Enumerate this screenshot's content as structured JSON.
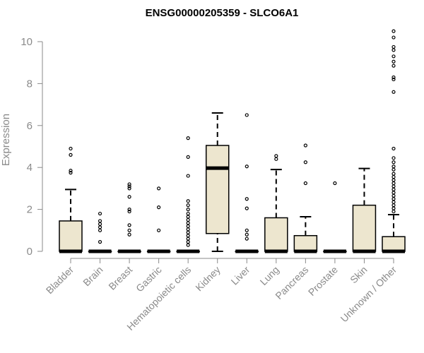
{
  "chart_data": {
    "type": "boxplot",
    "title": "ENSG00000205359 - SLCO6A1",
    "ylabel": "Expression",
    "xlabel": "",
    "ylim": [
      0,
      10.8
    ],
    "yticks": [
      0,
      2,
      4,
      6,
      8,
      10
    ],
    "grid": false,
    "legend": "none",
    "colors": {
      "box_fill": "#ede6cf",
      "stroke": "#000000",
      "axis": "#8a8a8a"
    },
    "categories": [
      "Bladder",
      "Brain",
      "Breast",
      "Gastric",
      "Hematopoietic cells",
      "Kidney",
      "Liver",
      "Lung",
      "Pancreas",
      "Prostate",
      "Skin",
      "Unknown / Other"
    ],
    "boxes": [
      {
        "category": "Bladder",
        "min": 0,
        "q1": 0,
        "median": 0,
        "q3": 1.45,
        "max": 2.95,
        "outliers": [
          3.75,
          3.85,
          4.6,
          4.9
        ]
      },
      {
        "category": "Brain",
        "min": 0,
        "q1": 0,
        "median": 0,
        "q3": 0,
        "max": 0,
        "outliers": [
          0.45,
          1.0,
          1.15,
          1.3,
          1.45,
          1.8
        ]
      },
      {
        "category": "Breast",
        "min": 0,
        "q1": 0,
        "median": 0,
        "q3": 0,
        "max": 0,
        "outliers": [
          0.8,
          1.0,
          1.25,
          1.9,
          2.0,
          2.6,
          3.0,
          3.1,
          3.2
        ]
      },
      {
        "category": "Gastric",
        "min": 0,
        "q1": 0,
        "median": 0,
        "q3": 0,
        "max": 0,
        "outliers": [
          1.0,
          2.1,
          3.0
        ]
      },
      {
        "category": "Hematopoietic cells",
        "min": 0,
        "q1": 0,
        "median": 0,
        "q3": 0,
        "max": 0,
        "outliers": [
          0.3,
          0.45,
          0.6,
          0.75,
          0.9,
          1.05,
          1.2,
          1.35,
          1.5,
          1.65,
          1.8,
          2.0,
          2.2,
          2.4,
          3.6,
          4.5,
          5.4
        ]
      },
      {
        "category": "Kidney",
        "min": 0,
        "q1": 0.85,
        "median": 3.97,
        "q3": 5.05,
        "max": 6.6,
        "outliers": []
      },
      {
        "category": "Liver",
        "min": 0,
        "q1": 0,
        "median": 0,
        "q3": 0,
        "max": 0,
        "outliers": [
          0.6,
          0.8,
          1.0,
          2.05,
          2.5,
          4.05,
          6.5
        ]
      },
      {
        "category": "Lung",
        "min": 0,
        "q1": 0,
        "median": 0,
        "q3": 1.6,
        "max": 3.9,
        "outliers": [
          4.4,
          4.55
        ]
      },
      {
        "category": "Pancreas",
        "min": 0,
        "q1": 0,
        "median": 0,
        "q3": 0.75,
        "max": 1.65,
        "outliers": [
          3.25,
          4.25,
          5.05
        ]
      },
      {
        "category": "Prostate",
        "min": 0,
        "q1": 0,
        "median": 0,
        "q3": 0,
        "max": 0,
        "outliers": [
          3.25
        ]
      },
      {
        "category": "Skin",
        "min": 0,
        "q1": 0,
        "median": 0,
        "q3": 2.2,
        "max": 3.95,
        "outliers": []
      },
      {
        "category": "Unknown / Other",
        "min": 0,
        "q1": 0,
        "median": 0,
        "q3": 0.7,
        "max": 1.75,
        "outliers": [
          1.9,
          2.05,
          2.2,
          2.35,
          2.5,
          2.65,
          2.8,
          2.95,
          3.1,
          3.25,
          3.4,
          3.55,
          3.7,
          3.9,
          4.05,
          4.25,
          4.45,
          4.9,
          7.6,
          8.2,
          8.3,
          8.85,
          9.05,
          9.3,
          9.6,
          9.75,
          10.2,
          10.5
        ]
      }
    ]
  }
}
